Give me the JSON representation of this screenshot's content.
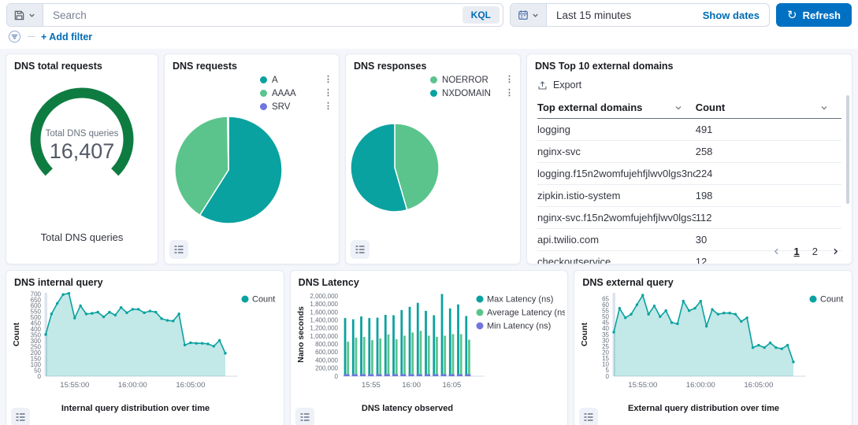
{
  "topbar": {
    "search_placeholder": "Search",
    "kql_label": "KQL",
    "time_range": "Last 15 minutes",
    "show_dates_label": "Show dates",
    "refresh_label": "Refresh",
    "add_filter_label": "+ Add filter"
  },
  "colors": {
    "teal": "#0aa2a0",
    "green": "#5bc48c",
    "purple": "#7076dd",
    "gauge_green": "#0e7c41",
    "link_blue": "#006bb4",
    "button_blue": "#0071c2",
    "text_dark": "#343741",
    "text_muted": "#69707d",
    "border": "#d3dae6",
    "area_fill": "rgba(10,162,160,0.25)"
  },
  "chart_data": [
    {
      "id": "dns-total-requests",
      "type": "gauge",
      "title": "DNS total requests",
      "center_label": "Total DNS queries",
      "value_display": "16,407",
      "value": 16407,
      "bottom_label": "Total DNS queries",
      "arc_degrees": 270,
      "color": "#0e7c41"
    },
    {
      "id": "dns-requests",
      "type": "pie",
      "title": "DNS requests",
      "legend_position": "right",
      "series": [
        {
          "name": "A",
          "percent": 59.0,
          "color": "#0aa2a0"
        },
        {
          "name": "AAAA",
          "percent": 40.7,
          "color": "#5bc48c"
        },
        {
          "name": "SRV",
          "percent": 0.3,
          "color": "#7076dd"
        }
      ]
    },
    {
      "id": "dns-responses",
      "type": "pie",
      "title": "DNS responses",
      "legend_position": "right",
      "series": [
        {
          "name": "NOERROR",
          "percent": 45.5,
          "color": "#5bc48c"
        },
        {
          "name": "NXDOMAIN",
          "percent": 54.5,
          "color": "#0aa2a0"
        }
      ]
    },
    {
      "id": "dns-top-domains",
      "type": "table",
      "title": "DNS Top 10 external domains",
      "export_label": "Export",
      "columns": [
        "Top external domains",
        "Count"
      ],
      "rows": [
        [
          "logging",
          "491"
        ],
        [
          "nginx-svc",
          "258"
        ],
        [
          "logging.f15n2womfujehfjlwv0lgs3nog....",
          "224"
        ],
        [
          "zipkin.istio-system",
          "198"
        ],
        [
          "nginx-svc.f15n2womfujehfjlwv0lgs3no...",
          "112"
        ],
        [
          "api.twilio.com",
          "30"
        ],
        [
          "checkoutservice",
          "12"
        ]
      ],
      "pages": [
        "1",
        "2"
      ],
      "active_page": "1"
    },
    {
      "id": "dns-internal-query",
      "type": "area",
      "title": "DNS internal query",
      "ylabel": "Count",
      "xlabel": "Internal query distribution over time",
      "legend": [
        {
          "name": "Count",
          "color": "#0aa2a0"
        }
      ],
      "ylim": [
        0,
        710
      ],
      "ytick_step": 50,
      "ytick_max": 700,
      "xticks": [
        {
          "index": 5,
          "label": "15:55:00"
        },
        {
          "index": 15,
          "label": "16:00:00"
        },
        {
          "index": 25,
          "label": "16:05:00"
        }
      ],
      "values": [
        355,
        530,
        620,
        695,
        705,
        495,
        600,
        530,
        535,
        545,
        505,
        545,
        520,
        585,
        540,
        570,
        570,
        540,
        555,
        545,
        490,
        475,
        470,
        530,
        265,
        285,
        280,
        280,
        275,
        255,
        305,
        195
      ]
    },
    {
      "id": "dns-latency",
      "type": "bar",
      "title": "DNS Latency",
      "ylabel": "Nano seconds",
      "xlabel": "DNS latency observed",
      "ylim": [
        0,
        2080000
      ],
      "ytick_step": 200000,
      "ytick_max": 2000000,
      "xticks": [
        {
          "index": 3,
          "label": "15:55"
        },
        {
          "index": 8,
          "label": "16:00"
        },
        {
          "index": 13,
          "label": "16:05"
        }
      ],
      "series": [
        {
          "name": "Max Latency (ns)",
          "color": "#0aa2a0",
          "values": [
            1450000,
            1420000,
            1490000,
            1450000,
            1460000,
            1530000,
            1520000,
            1650000,
            1730000,
            1830000,
            1630000,
            1520000,
            2050000,
            1690000,
            1790000,
            1500000
          ]
        },
        {
          "name": "Average Latency (ns)",
          "color": "#5bc48c",
          "values": [
            860000,
            960000,
            980000,
            900000,
            940000,
            1040000,
            920000,
            1010000,
            1090000,
            1130000,
            1010000,
            980000,
            1010000,
            1050000,
            1050000,
            910000
          ]
        },
        {
          "name": "Min Latency (ns)",
          "color": "#7076dd",
          "values": [
            15000,
            15000,
            15000,
            15000,
            15000,
            15000,
            15000,
            15000,
            15000,
            15000,
            15000,
            15000,
            15000,
            15000,
            15000,
            15000
          ]
        }
      ]
    },
    {
      "id": "dns-external-query",
      "type": "area",
      "title": "DNS external query",
      "ylabel": "Count",
      "xlabel": "External query distribution over time",
      "legend": [
        {
          "name": "Count",
          "color": "#0aa2a0"
        }
      ],
      "ylim": [
        0,
        70
      ],
      "ytick_step": 5,
      "ytick_max": 65,
      "xticks": [
        {
          "index": 5,
          "label": "15:55:00"
        },
        {
          "index": 15,
          "label": "16:00:00"
        },
        {
          "index": 25,
          "label": "16:05:00"
        }
      ],
      "values": [
        37,
        57,
        49,
        52,
        60,
        68,
        52,
        59,
        50,
        55,
        45,
        44,
        63,
        55,
        57,
        63,
        42,
        56,
        52,
        53,
        53,
        52,
        46,
        49,
        24,
        26,
        24,
        28,
        24,
        23,
        26,
        12
      ]
    }
  ]
}
